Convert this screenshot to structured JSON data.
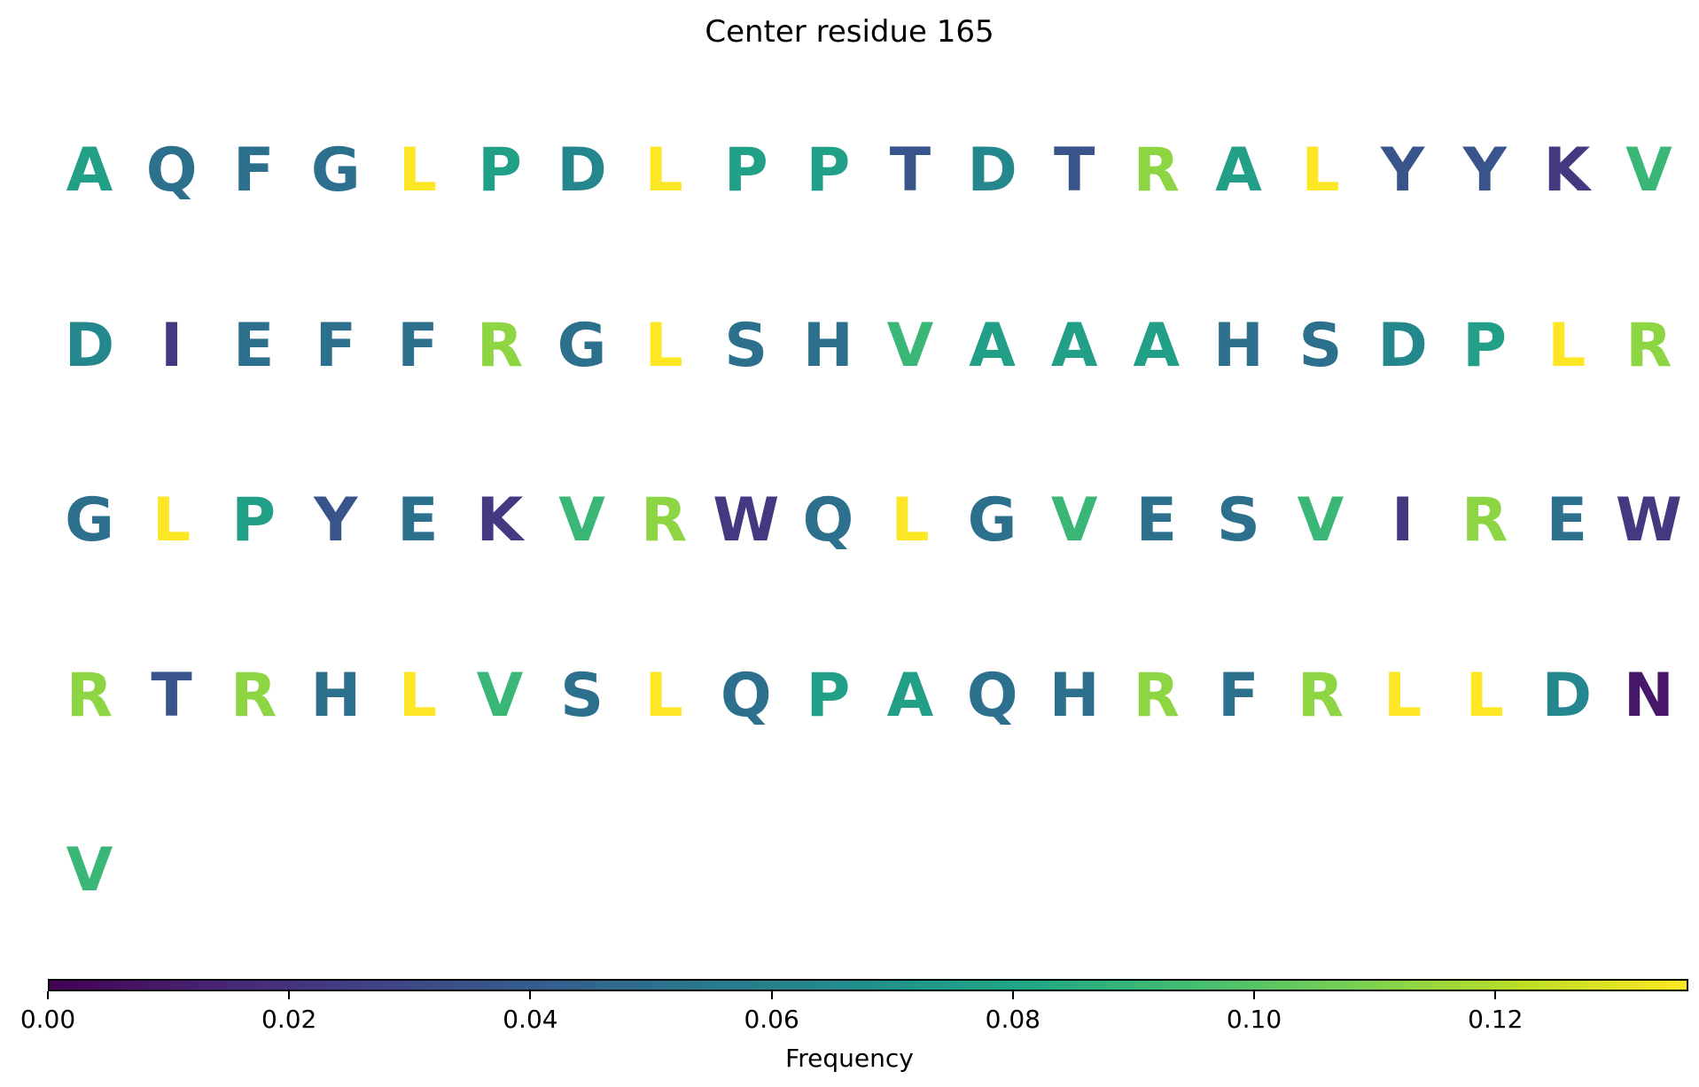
{
  "chart_data": {
    "type": "sequence_logo",
    "title": "Center residue 165",
    "colorbar": {
      "label": "Frequency",
      "range": [
        0,
        0.136
      ],
      "ticks": [
        "0.00",
        "0.02",
        "0.04",
        "0.06",
        "0.08",
        "0.10",
        "0.12"
      ],
      "tick_values": [
        0,
        0.02,
        0.04,
        0.06,
        0.08,
        0.1,
        0.12
      ],
      "colormap": "viridis"
    },
    "columns_per_row": 20,
    "residues": [
      {
        "letter": "A",
        "frequency": 0.077
      },
      {
        "letter": "Q",
        "frequency": 0.05
      },
      {
        "letter": "F",
        "frequency": 0.05
      },
      {
        "letter": "G",
        "frequency": 0.05
      },
      {
        "letter": "L",
        "frequency": 0.136
      },
      {
        "letter": "P",
        "frequency": 0.077
      },
      {
        "letter": "D",
        "frequency": 0.063
      },
      {
        "letter": "L",
        "frequency": 0.136
      },
      {
        "letter": "P",
        "frequency": 0.077
      },
      {
        "letter": "P",
        "frequency": 0.077
      },
      {
        "letter": "T",
        "frequency": 0.036
      },
      {
        "letter": "D",
        "frequency": 0.063
      },
      {
        "letter": "T",
        "frequency": 0.036
      },
      {
        "letter": "R",
        "frequency": 0.113
      },
      {
        "letter": "A",
        "frequency": 0.077
      },
      {
        "letter": "L",
        "frequency": 0.136
      },
      {
        "letter": "Y",
        "frequency": 0.036
      },
      {
        "letter": "Y",
        "frequency": 0.036
      },
      {
        "letter": "K",
        "frequency": 0.023
      },
      {
        "letter": "V",
        "frequency": 0.091
      },
      {
        "letter": "D",
        "frequency": 0.063
      },
      {
        "letter": "I",
        "frequency": 0.023
      },
      {
        "letter": "E",
        "frequency": 0.05
      },
      {
        "letter": "F",
        "frequency": 0.05
      },
      {
        "letter": "F",
        "frequency": 0.05
      },
      {
        "letter": "R",
        "frequency": 0.113
      },
      {
        "letter": "G",
        "frequency": 0.05
      },
      {
        "letter": "L",
        "frequency": 0.136
      },
      {
        "letter": "S",
        "frequency": 0.05
      },
      {
        "letter": "H",
        "frequency": 0.05
      },
      {
        "letter": "V",
        "frequency": 0.091
      },
      {
        "letter": "A",
        "frequency": 0.077
      },
      {
        "letter": "A",
        "frequency": 0.077
      },
      {
        "letter": "A",
        "frequency": 0.077
      },
      {
        "letter": "H",
        "frequency": 0.05
      },
      {
        "letter": "S",
        "frequency": 0.05
      },
      {
        "letter": "D",
        "frequency": 0.063
      },
      {
        "letter": "P",
        "frequency": 0.077
      },
      {
        "letter": "L",
        "frequency": 0.136
      },
      {
        "letter": "R",
        "frequency": 0.113
      },
      {
        "letter": "G",
        "frequency": 0.05
      },
      {
        "letter": "L",
        "frequency": 0.136
      },
      {
        "letter": "P",
        "frequency": 0.077
      },
      {
        "letter": "Y",
        "frequency": 0.036
      },
      {
        "letter": "E",
        "frequency": 0.05
      },
      {
        "letter": "K",
        "frequency": 0.023
      },
      {
        "letter": "V",
        "frequency": 0.091
      },
      {
        "letter": "R",
        "frequency": 0.113
      },
      {
        "letter": "W",
        "frequency": 0.023
      },
      {
        "letter": "Q",
        "frequency": 0.05
      },
      {
        "letter": "L",
        "frequency": 0.136
      },
      {
        "letter": "G",
        "frequency": 0.05
      },
      {
        "letter": "V",
        "frequency": 0.091
      },
      {
        "letter": "E",
        "frequency": 0.05
      },
      {
        "letter": "S",
        "frequency": 0.05
      },
      {
        "letter": "V",
        "frequency": 0.091
      },
      {
        "letter": "I",
        "frequency": 0.023
      },
      {
        "letter": "R",
        "frequency": 0.113
      },
      {
        "letter": "E",
        "frequency": 0.05
      },
      {
        "letter": "W",
        "frequency": 0.023
      },
      {
        "letter": "R",
        "frequency": 0.113
      },
      {
        "letter": "T",
        "frequency": 0.036
      },
      {
        "letter": "R",
        "frequency": 0.113
      },
      {
        "letter": "H",
        "frequency": 0.05
      },
      {
        "letter": "L",
        "frequency": 0.136
      },
      {
        "letter": "V",
        "frequency": 0.091
      },
      {
        "letter": "S",
        "frequency": 0.05
      },
      {
        "letter": "L",
        "frequency": 0.136
      },
      {
        "letter": "Q",
        "frequency": 0.05
      },
      {
        "letter": "P",
        "frequency": 0.077
      },
      {
        "letter": "A",
        "frequency": 0.077
      },
      {
        "letter": "Q",
        "frequency": 0.05
      },
      {
        "letter": "H",
        "frequency": 0.05
      },
      {
        "letter": "R",
        "frequency": 0.113
      },
      {
        "letter": "F",
        "frequency": 0.05
      },
      {
        "letter": "R",
        "frequency": 0.113
      },
      {
        "letter": "L",
        "frequency": 0.136
      },
      {
        "letter": "L",
        "frequency": 0.136
      },
      {
        "letter": "D",
        "frequency": 0.063
      },
      {
        "letter": "N",
        "frequency": 0.009
      },
      {
        "letter": "V",
        "frequency": 0.091
      }
    ]
  }
}
